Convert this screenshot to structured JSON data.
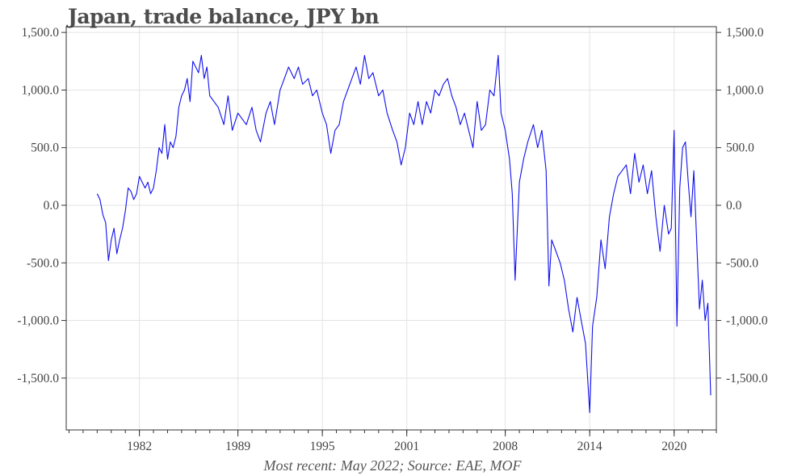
{
  "title": "Japan, trade balance, JPY bn",
  "footer": "Most recent: May 2022; Source: EAE, MOF",
  "colors": {
    "series": "#1010ee",
    "grid": "#e3e3e3",
    "axis": "#333333",
    "text": "#444444"
  },
  "chart_data": {
    "type": "line",
    "title": "Japan, trade balance, JPY bn",
    "xlabel": "",
    "ylabel": "",
    "xlim": [
      1976.8,
      2023.0
    ],
    "ylim": [
      -1950,
      1550
    ],
    "yticks": [
      1500,
      1000,
      500,
      0,
      -500,
      -1000,
      -1500
    ],
    "ytick_labels": [
      "1,500.0",
      "1,000.0",
      "500.0",
      "0.0",
      "-500.0",
      "-1,000.0",
      "-1,500.0"
    ],
    "xticks": [
      1982,
      1989,
      1995,
      2001,
      2008,
      2014,
      2020
    ],
    "xtick_labels": [
      "1982",
      "1989",
      "1995",
      "2001",
      "2008",
      "2014",
      "2020"
    ],
    "grid": true,
    "series": [
      {
        "name": "",
        "x": [
          1979.0,
          1979.2,
          1979.4,
          1979.6,
          1979.8,
          1980.0,
          1980.2,
          1980.4,
          1980.6,
          1980.8,
          1981.0,
          1981.2,
          1981.4,
          1981.6,
          1981.8,
          1982.0,
          1982.2,
          1982.4,
          1982.6,
          1982.8,
          1983.0,
          1983.2,
          1983.4,
          1983.6,
          1983.8,
          1984.0,
          1984.2,
          1984.4,
          1984.6,
          1984.8,
          1985.0,
          1985.2,
          1985.4,
          1985.6,
          1985.8,
          1986.0,
          1986.2,
          1986.4,
          1986.6,
          1986.8,
          1987.0,
          1987.3,
          1987.6,
          1988.0,
          1988.3,
          1988.6,
          1989.0,
          1989.3,
          1989.6,
          1990.0,
          1990.3,
          1990.6,
          1991.0,
          1991.3,
          1991.6,
          1992.0,
          1992.3,
          1992.6,
          1993.0,
          1993.3,
          1993.6,
          1994.0,
          1994.3,
          1994.6,
          1995.0,
          1995.3,
          1995.6,
          1995.9,
          1996.2,
          1996.5,
          1996.8,
          1997.1,
          1997.4,
          1997.7,
          1998.0,
          1998.3,
          1998.6,
          1999.0,
          1999.3,
          1999.6,
          2000.0,
          2000.3,
          2000.6,
          2000.9,
          2001.2,
          2001.5,
          2001.8,
          2002.1,
          2002.4,
          2002.7,
          2003.0,
          2003.3,
          2003.6,
          2003.9,
          2004.2,
          2004.5,
          2004.8,
          2005.1,
          2005.4,
          2005.7,
          2006.0,
          2006.3,
          2006.6,
          2006.9,
          2007.2,
          2007.5,
          2007.7,
          2008.0,
          2008.3,
          2008.5,
          2008.7,
          2009.0,
          2009.3,
          2009.6,
          2010.0,
          2010.3,
          2010.6,
          2010.9,
          2011.1,
          2011.3,
          2011.6,
          2011.9,
          2012.2,
          2012.5,
          2012.8,
          2013.1,
          2013.4,
          2013.7,
          2014.0,
          2014.2,
          2014.5,
          2014.8,
          2015.1,
          2015.4,
          2015.7,
          2016.0,
          2016.3,
          2016.6,
          2016.9,
          2017.2,
          2017.5,
          2017.8,
          2018.1,
          2018.4,
          2018.7,
          2019.0,
          2019.3,
          2019.6,
          2019.8,
          2020.0,
          2020.2,
          2020.4,
          2020.6,
          2020.8,
          2021.0,
          2021.2,
          2021.4,
          2021.6,
          2021.8,
          2022.0,
          2022.2,
          2022.4,
          2022.6
        ],
        "values": [
          100,
          50,
          -80,
          -150,
          -480,
          -300,
          -200,
          -420,
          -300,
          -200,
          -50,
          150,
          120,
          50,
          100,
          250,
          200,
          150,
          200,
          100,
          150,
          300,
          500,
          450,
          700,
          400,
          550,
          500,
          600,
          850,
          950,
          1000,
          1100,
          900,
          1250,
          1200,
          1150,
          1300,
          1100,
          1200,
          950,
          900,
          850,
          700,
          950,
          650,
          800,
          750,
          700,
          850,
          650,
          550,
          800,
          900,
          700,
          1000,
          1100,
          1200,
          1100,
          1200,
          1050,
          1100,
          950,
          1000,
          800,
          700,
          450,
          650,
          700,
          900,
          1000,
          1100,
          1200,
          1050,
          1300,
          1100,
          1150,
          950,
          1000,
          800,
          650,
          550,
          350,
          500,
          800,
          700,
          900,
          700,
          900,
          800,
          1000,
          950,
          1050,
          1100,
          950,
          850,
          700,
          800,
          650,
          500,
          900,
          650,
          700,
          1000,
          950,
          1300,
          800,
          650,
          400,
          100,
          -650,
          200,
          400,
          550,
          700,
          500,
          650,
          300,
          -700,
          -300,
          -400,
          -500,
          -650,
          -900,
          -1100,
          -800,
          -1000,
          -1200,
          -1800,
          -1050,
          -800,
          -300,
          -550,
          -100,
          100,
          250,
          300,
          350,
          100,
          450,
          200,
          350,
          100,
          300,
          -100,
          -400,
          0,
          -250,
          -200,
          650,
          -1050,
          150,
          500,
          550,
          200,
          -100,
          300,
          -300,
          -900,
          -650,
          -1000,
          -850,
          -1650
        ]
      }
    ]
  }
}
